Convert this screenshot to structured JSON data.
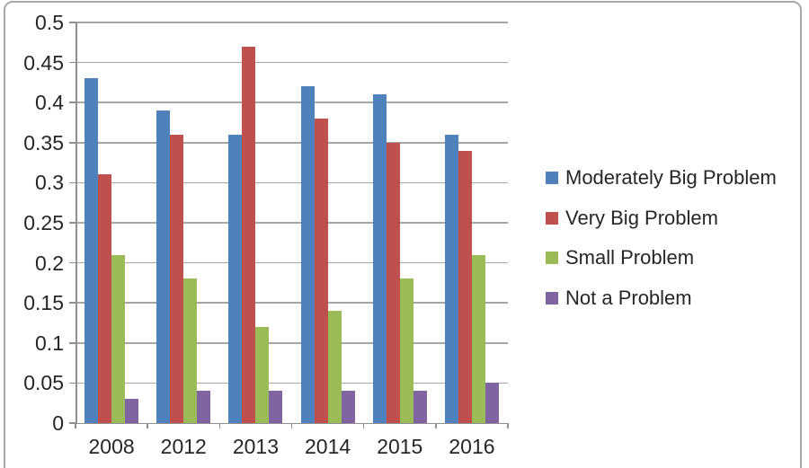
{
  "style": {
    "text_color": "#262626",
    "frame_border": "#A8A8A8",
    "gridline_color": "#A6A6A6",
    "axis_color": "#8F8F8F",
    "background": "#FFFFFF"
  },
  "chart_data": {
    "type": "bar",
    "title": "",
    "xlabel": "",
    "ylabel": "",
    "categories": [
      "2008",
      "2012",
      "2013",
      "2014",
      "2015",
      "2016"
    ],
    "series": [
      {
        "name": "Moderately Big Problem",
        "color": "#4F81BD",
        "values": [
          0.43,
          0.39,
          0.36,
          0.42,
          0.41,
          0.36
        ]
      },
      {
        "name": "Very Big Problem",
        "color": "#C0504D",
        "values": [
          0.31,
          0.36,
          0.47,
          0.38,
          0.35,
          0.34
        ]
      },
      {
        "name": "Small Problem",
        "color": "#9BBB59",
        "values": [
          0.21,
          0.18,
          0.12,
          0.14,
          0.18,
          0.21
        ]
      },
      {
        "name": "Not a Problem",
        "color": "#8064A2",
        "values": [
          0.03,
          0.04,
          0.04,
          0.04,
          0.04,
          0.05
        ]
      }
    ],
    "ylim": [
      0,
      0.5
    ],
    "y_ticks": [
      {
        "value": 0,
        "label": "0"
      },
      {
        "value": 0.05,
        "label": "0.05"
      },
      {
        "value": 0.1,
        "label": "0.1"
      },
      {
        "value": 0.15,
        "label": "0.15"
      },
      {
        "value": 0.2,
        "label": "0.2"
      },
      {
        "value": 0.25,
        "label": "0.25"
      },
      {
        "value": 0.3,
        "label": "0.3"
      },
      {
        "value": 0.35,
        "label": "0.35"
      },
      {
        "value": 0.4,
        "label": "0.4"
      },
      {
        "value": 0.45,
        "label": "0.45"
      },
      {
        "value": 0.5,
        "label": "0.5"
      }
    ],
    "grid": true,
    "legend_position": "right"
  }
}
